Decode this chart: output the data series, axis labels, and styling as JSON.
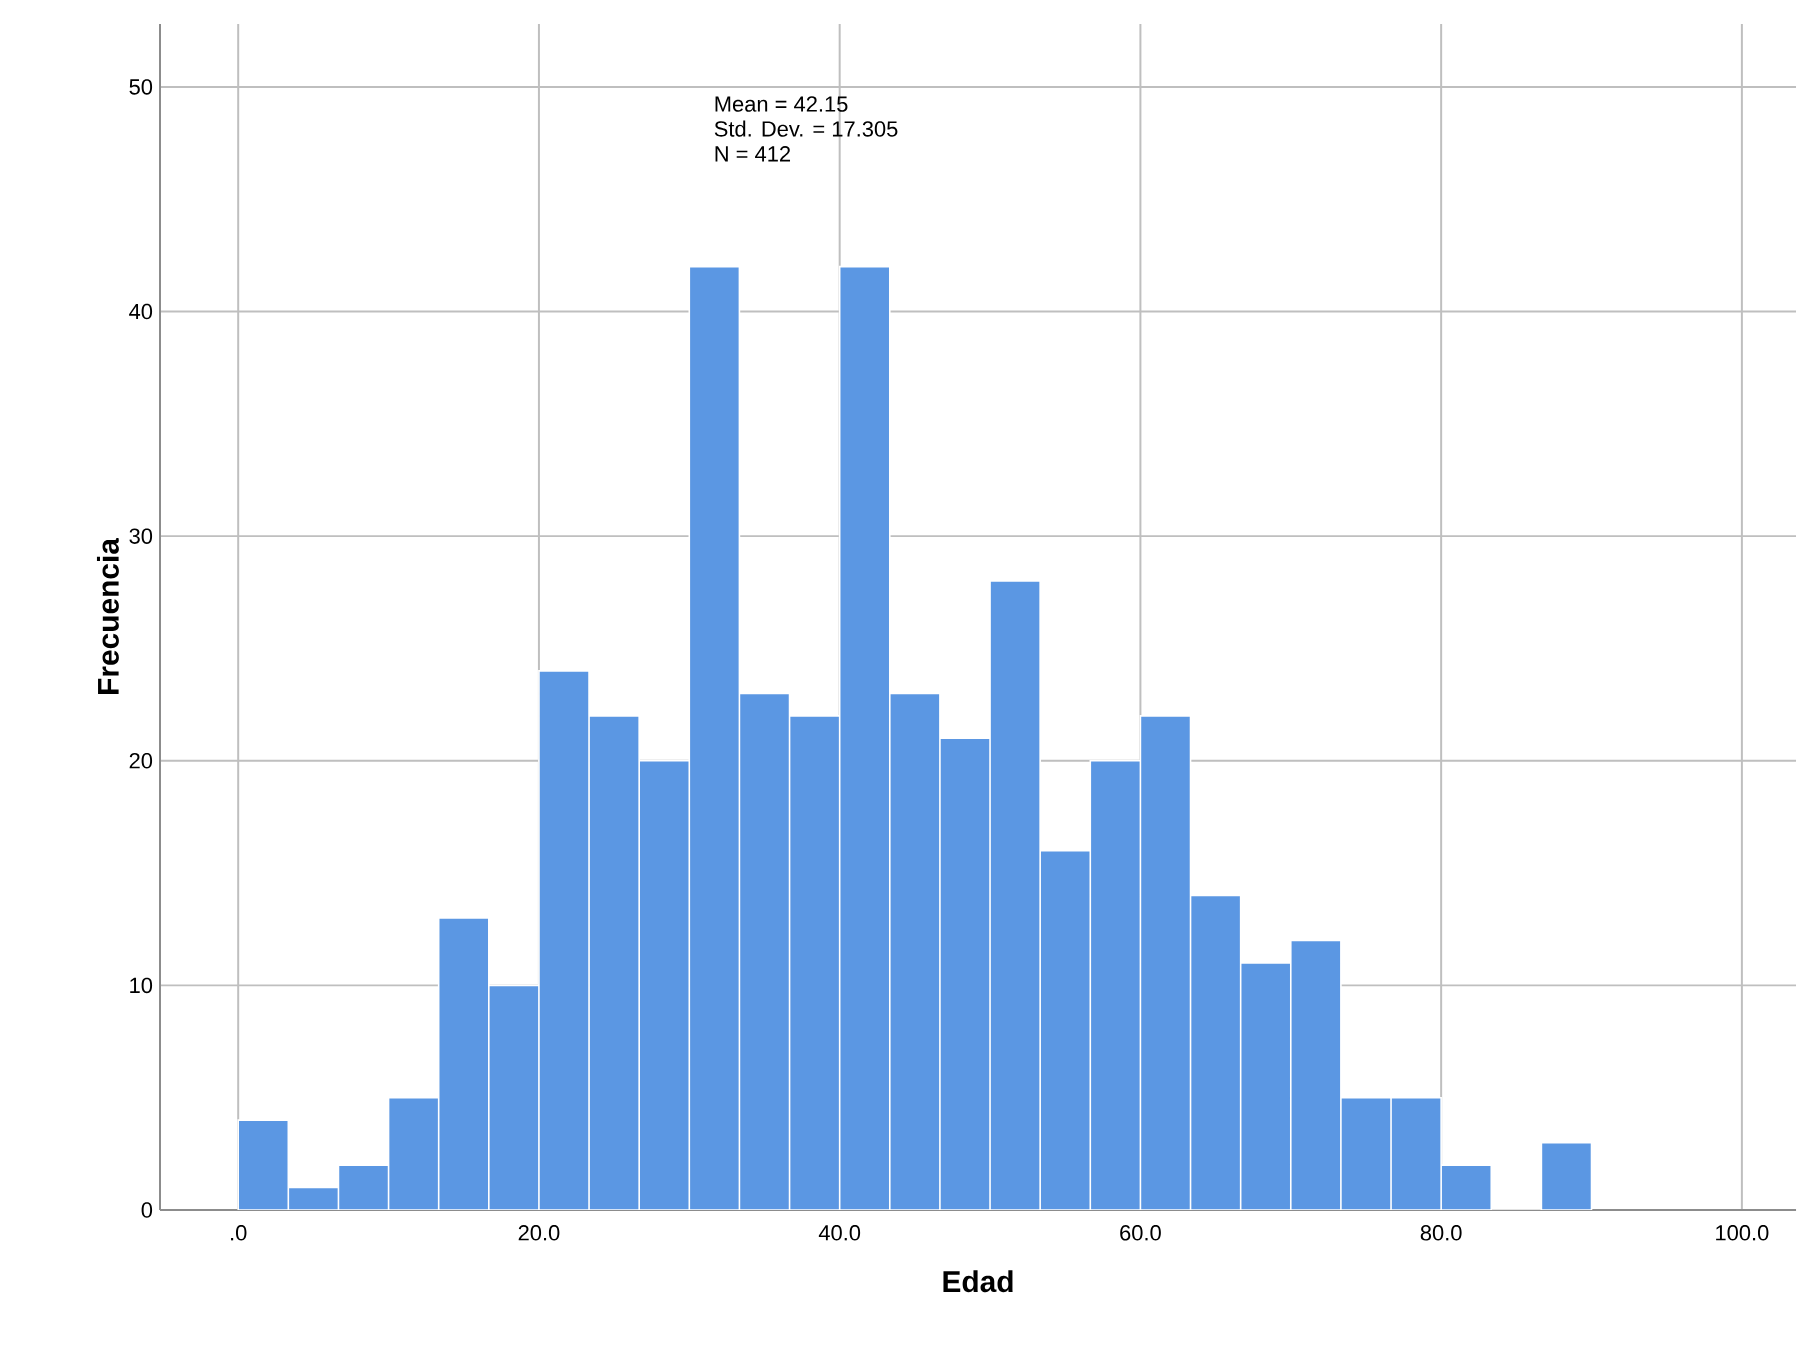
{
  "chart_data": {
    "type": "histogram",
    "xlabel": "Edad",
    "ylabel": "Frecuencia",
    "bins": [
      0,
      3.333,
      6.667,
      10,
      13.333,
      16.667,
      20,
      23.333,
      26.667,
      30,
      33.333,
      36.667,
      40,
      43.333,
      46.667,
      50,
      53.333,
      56.667,
      60,
      63.333,
      66.667,
      70,
      73.333,
      76.667,
      80,
      83.333,
      86.667,
      90
    ],
    "values": [
      4,
      1,
      2,
      5,
      13,
      10,
      24,
      22,
      20,
      42,
      23,
      22,
      42,
      23,
      21,
      28,
      16,
      20,
      22,
      14,
      11,
      12,
      5,
      5,
      2,
      0,
      3
    ],
    "color": "#5b97e3",
    "xlim": [
      -5.2,
      103.6
    ],
    "ylim": [
      0,
      52.8
    ],
    "xticks": [
      {
        "value": 0,
        "label": ".0"
      },
      {
        "value": 20,
        "label": "20.0"
      },
      {
        "value": 40,
        "label": "40.0"
      },
      {
        "value": 60,
        "label": "60.0"
      },
      {
        "value": 80,
        "label": "80.0"
      },
      {
        "value": 100,
        "label": "100.0"
      }
    ],
    "yticks": [
      0,
      10,
      20,
      30,
      40,
      50
    ],
    "grid": true,
    "annotations": [
      "Mean = 42.15",
      "Std. Dev. = 17.305",
      "N = 412"
    ]
  }
}
